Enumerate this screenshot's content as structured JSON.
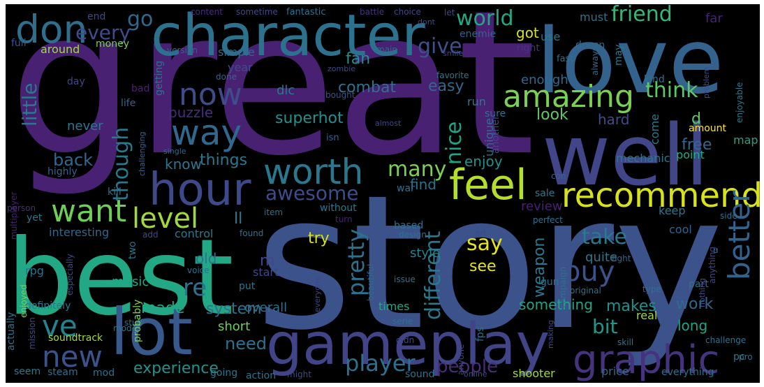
{
  "title": "",
  "words": [
    {
      "text": "great",
      "color": "#482173"
    },
    {
      "text": "story",
      "color": "#3b528b"
    },
    {
      "text": "best",
      "color": "#22a884"
    },
    {
      "text": "love",
      "color": "#33638d"
    },
    {
      "text": "well",
      "color": "#404688"
    },
    {
      "text": "character",
      "color": "#2c728e"
    },
    {
      "text": "gameplay",
      "color": "#414487"
    },
    {
      "text": "lot",
      "color": "#38598c"
    },
    {
      "text": "hour",
      "color": "#3e4989"
    },
    {
      "text": "recommend",
      "color": "#d8e219"
    },
    {
      "text": "feel",
      "color": "#b5de2b"
    },
    {
      "text": "graphic",
      "color": "#46337e"
    },
    {
      "text": "amazing",
      "color": "#7ad151"
    },
    {
      "text": "worth",
      "color": "#2a788e"
    },
    {
      "text": "way",
      "color": "#31688e"
    },
    {
      "text": "want",
      "color": "#6ece58"
    },
    {
      "text": "level",
      "color": "#a0da39"
    },
    {
      "text": "don",
      "color": "#2e6f8e"
    },
    {
      "text": "new",
      "color": "#3b528b"
    },
    {
      "text": "ve",
      "color": "#26828e"
    },
    {
      "text": "now",
      "color": "#3e4c8a"
    },
    {
      "text": "buy",
      "color": "#3b528b"
    },
    {
      "text": "better",
      "color": "#33638d"
    },
    {
      "text": "player",
      "color": "#2d708e"
    },
    {
      "text": "re",
      "color": "#2c728e"
    },
    {
      "text": "awesome",
      "color": "#3e4c8a"
    },
    {
      "text": "many",
      "color": "#7ad151"
    },
    {
      "text": "though",
      "color": "#2a788e"
    },
    {
      "text": "world",
      "color": "#22a884"
    },
    {
      "text": "friend",
      "color": "#35b779"
    },
    {
      "text": "give",
      "color": "#3b528b"
    },
    {
      "text": "every",
      "color": "#3e4c8a"
    },
    {
      "text": "go",
      "color": "#31688e"
    },
    {
      "text": "pretty",
      "color": "#2c728e"
    },
    {
      "text": "different",
      "color": "#2a788e"
    },
    {
      "text": "nice",
      "color": "#20a386"
    },
    {
      "text": "say",
      "color": "#e5e419"
    },
    {
      "text": "take",
      "color": "#2a788e"
    },
    {
      "text": "think",
      "color": "#5ec962"
    },
    {
      "text": "people",
      "color": "#472d7b"
    },
    {
      "text": "bit",
      "color": "#1f988b"
    },
    {
      "text": "little",
      "color": "#2a788e"
    },
    {
      "text": "back",
      "color": "#31688e"
    },
    {
      "text": "experience",
      "color": "#21918c"
    },
    {
      "text": "need",
      "color": "#2c728e"
    },
    {
      "text": "superhot",
      "color": "#21918c"
    },
    {
      "text": "combat",
      "color": "#2c728e"
    },
    {
      "text": "easy",
      "color": "#31688e"
    },
    {
      "text": "look",
      "color": "#5ec962"
    },
    {
      "text": "fan",
      "color": "#21918c"
    },
    {
      "text": "got",
      "color": "#d8e219"
    },
    {
      "text": "things",
      "color": "#2a788e"
    },
    {
      "text": "enjoy",
      "color": "#21918c"
    },
    {
      "text": "find",
      "color": "#2c728e"
    },
    {
      "text": "weapon",
      "color": "#2a788e"
    },
    {
      "text": "system",
      "color": "#2c728e"
    },
    {
      "text": "makes",
      "color": "#21918c"
    },
    {
      "text": "work",
      "color": "#31688e"
    },
    {
      "text": "free",
      "color": "#31688e"
    },
    {
      "text": "puzzle",
      "color": "#472d7b"
    },
    {
      "text": "know",
      "color": "#2a788e"
    },
    {
      "text": "made",
      "color": "#22a884"
    },
    {
      "text": "try",
      "color": "#d8e219"
    },
    {
      "text": "see",
      "color": "#e5e419"
    },
    {
      "text": "hard",
      "color": "#3e4c8a"
    },
    {
      "text": "long",
      "color": "#20a386"
    },
    {
      "text": "something",
      "color": "#20a386"
    },
    {
      "text": "review",
      "color": "#482173"
    },
    {
      "text": "ll",
      "color": "#2a788e"
    },
    {
      "text": "m",
      "color": "#404688"
    },
    {
      "text": "d",
      "color": "#5ec962"
    },
    {
      "text": "old",
      "color": "#2c728e"
    },
    {
      "text": "music",
      "color": "#22a884"
    },
    {
      "text": "quite",
      "color": "#2a788e"
    },
    {
      "text": "style",
      "color": "#26828e"
    },
    {
      "text": "short",
      "color": "#6ece58"
    },
    {
      "text": "never",
      "color": "#2a788e"
    },
    {
      "text": "enough",
      "color": "#31688e"
    },
    {
      "text": "times",
      "color": "#22a884"
    },
    {
      "text": "overall",
      "color": "#2c728e"
    },
    {
      "text": "point",
      "color": "#22a884"
    },
    {
      "text": "map",
      "color": "#20a386"
    },
    {
      "text": "keep",
      "color": "#2a788e"
    },
    {
      "text": "cool",
      "color": "#33638d"
    },
    {
      "text": "mechanic",
      "color": "#2a788e"
    },
    {
      "text": "simple",
      "color": "#31688e"
    },
    {
      "text": "around",
      "color": "#a0da39"
    },
    {
      "text": "full",
      "color": "#3b528b"
    },
    {
      "text": "money",
      "color": "#7ad151"
    },
    {
      "text": "dlc",
      "color": "#2a788e"
    },
    {
      "text": "year",
      "color": "#3e4c8a"
    },
    {
      "text": "bad",
      "color": "#482173"
    },
    {
      "text": "life",
      "color": "#33638d"
    },
    {
      "text": "getting",
      "color": "#2c728e"
    },
    {
      "text": "day",
      "color": "#404688"
    },
    {
      "text": "end",
      "color": "#3e4989"
    },
    {
      "text": "content",
      "color": "#472d7b"
    },
    {
      "text": "sometime",
      "color": "#3e4989"
    },
    {
      "text": "fantastic",
      "color": "#2c728e"
    },
    {
      "text": "battle",
      "color": "#46337e"
    },
    {
      "text": "choice",
      "color": "#3e4989"
    },
    {
      "text": "let",
      "color": "#3e4989"
    },
    {
      "text": "use",
      "color": "#2a788e"
    },
    {
      "text": "must",
      "color": "#2c728e"
    },
    {
      "text": "far",
      "color": "#482173"
    },
    {
      "text": "dont",
      "color": "#3e4989"
    },
    {
      "text": "enemie",
      "color": "#33638d"
    },
    {
      "text": "doesn",
      "color": "#31688e"
    },
    {
      "text": "right",
      "color": "#46337e"
    },
    {
      "text": "version",
      "color": "#33638d"
    },
    {
      "text": "main",
      "color": "#31688e"
    },
    {
      "text": "smile",
      "color": "#3e4989"
    },
    {
      "text": "fast",
      "color": "#2c728e"
    },
    {
      "text": "always",
      "color": "#31688e"
    },
    {
      "text": "may",
      "color": "#2a788e"
    },
    {
      "text": "zombie",
      "color": "#3e4989"
    },
    {
      "text": "done",
      "color": "#33638d"
    },
    {
      "text": "favorite",
      "color": "#2a788e"
    },
    {
      "text": "bought",
      "color": "#3b528b"
    },
    {
      "text": "kind",
      "color": "#2c728e"
    },
    {
      "text": "run",
      "color": "#2a788e"
    },
    {
      "text": "problem",
      "color": "#3e4989"
    },
    {
      "text": "enjoyable",
      "color": "#2a788e"
    },
    {
      "text": "amount",
      "color": "#fde725"
    },
    {
      "text": "sure",
      "color": "#2c728e"
    },
    {
      "text": "unique",
      "color": "#2c728e"
    },
    {
      "text": "another",
      "color": "#3e4989"
    },
    {
      "text": "come",
      "color": "#2a788e"
    },
    {
      "text": "isn",
      "color": "#33638d"
    },
    {
      "text": "almost",
      "color": "#3e4989"
    },
    {
      "text": "challenging",
      "color": "#33638d"
    },
    {
      "text": "single",
      "color": "#31688e"
    },
    {
      "text": "highly",
      "color": "#33638d"
    },
    {
      "text": "multiplayer",
      "color": "#482173"
    },
    {
      "text": "kill",
      "color": "#2c728e"
    },
    {
      "text": "war",
      "color": "#2c728e"
    },
    {
      "text": "con",
      "color": "#31688e"
    },
    {
      "text": "sale",
      "color": "#2a788e"
    },
    {
      "text": "person",
      "color": "#472d7b"
    },
    {
      "text": "yet",
      "color": "#2a788e"
    },
    {
      "text": "item",
      "color": "#2c728e"
    },
    {
      "text": "based",
      "color": "#2c728e"
    },
    {
      "text": "without",
      "color": "#2a788e"
    },
    {
      "text": "turn",
      "color": "#482173"
    },
    {
      "text": "found",
      "color": "#2c728e"
    },
    {
      "text": "design",
      "color": "#2c728e"
    },
    {
      "text": "perfect",
      "color": "#2c728e"
    },
    {
      "text": "side",
      "color": "#2c728e"
    },
    {
      "text": "add",
      "color": "#3e4989"
    },
    {
      "text": "interesting",
      "color": "#31688e"
    },
    {
      "text": "control",
      "color": "#2a788e"
    },
    {
      "text": "two",
      "color": "#2a788e"
    },
    {
      "text": "art",
      "color": "#3e4989"
    },
    {
      "text": "u",
      "color": "#31688e"
    },
    {
      "text": "voice",
      "color": "#2c728e"
    },
    {
      "text": "start",
      "color": "#3e4989"
    },
    {
      "text": "beautiful",
      "color": "#31688e"
    },
    {
      "text": "rpg",
      "color": "#2c728e"
    },
    {
      "text": "put",
      "color": "#2a788e"
    },
    {
      "text": "issue",
      "color": "#2c728e"
    },
    {
      "text": "gun",
      "color": "#2c728e"
    },
    {
      "text": "campaign",
      "color": "#2c728e"
    },
    {
      "text": "fight",
      "color": "#33638d"
    },
    {
      "text": "anything",
      "color": "#3e4989"
    },
    {
      "text": "original",
      "color": "#2c728e"
    },
    {
      "text": "type",
      "color": "#2c728e"
    },
    {
      "text": "part",
      "color": "#2c728e"
    },
    {
      "text": "especially",
      "color": "#3e4989"
    },
    {
      "text": "everyone",
      "color": "#3e4989"
    },
    {
      "text": "serie",
      "color": "#2c728e"
    },
    {
      "text": "real",
      "color": "#a0da39"
    },
    {
      "text": "nothing",
      "color": "#3e4989"
    },
    {
      "text": "definitely",
      "color": "#2a788e"
    },
    {
      "text": "mode",
      "color": "#2c728e"
    },
    {
      "text": "stuff",
      "color": "#2c728e"
    },
    {
      "text": "actually",
      "color": "#2c728e"
    },
    {
      "text": "enjoyed",
      "color": "#7ad151"
    },
    {
      "text": "mission",
      "color": "#3e4989"
    },
    {
      "text": "probably",
      "color": "#7ad151"
    },
    {
      "text": "skill",
      "color": "#2c728e"
    },
    {
      "text": "challenge",
      "color": "#2c728e"
    },
    {
      "text": "soundtrack",
      "color": "#a0da39"
    },
    {
      "text": "seem",
      "color": "#2a788e"
    },
    {
      "text": "steam",
      "color": "#2c728e"
    },
    {
      "text": "mod",
      "color": "#2c728e"
    },
    {
      "text": "going",
      "color": "#2a788e"
    },
    {
      "text": "didn",
      "color": "#3e4989"
    },
    {
      "text": "anyone",
      "color": "#3e4989"
    },
    {
      "text": "fps",
      "color": "#2c728e"
    },
    {
      "text": "making",
      "color": "#3e4989"
    },
    {
      "text": "pc",
      "color": "#2a788e"
    },
    {
      "text": "pro",
      "color": "#2c728e"
    },
    {
      "text": "action",
      "color": "#2c728e"
    },
    {
      "text": "might",
      "color": "#3e4989"
    },
    {
      "text": "sound",
      "color": "#2c728e"
    },
    {
      "text": "online",
      "color": "#3e4989"
    },
    {
      "text": "shooter",
      "color": "#a0da39"
    },
    {
      "text": "price",
      "color": "#31688e"
    },
    {
      "text": "everything",
      "color": "#2c728e"
    }
  ]
}
